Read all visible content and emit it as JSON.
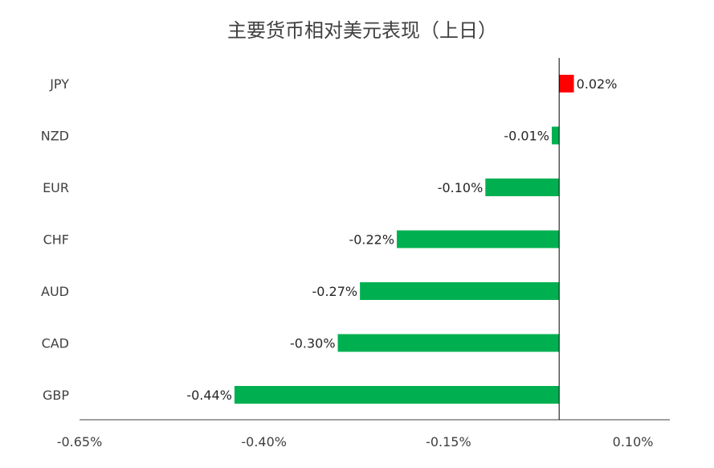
{
  "chart_data": {
    "type": "bar",
    "orientation": "horizontal",
    "title": "主要货币相对美元表现（上日）",
    "categories": [
      "JPY",
      "NZD",
      "EUR",
      "CHF",
      "AUD",
      "CAD",
      "GBP"
    ],
    "values": [
      0.02,
      -0.01,
      -0.1,
      -0.22,
      -0.27,
      -0.3,
      -0.44
    ],
    "data_labels": [
      "0.02%",
      "-0.01%",
      "-0.10%",
      "-0.22%",
      "-0.27%",
      "-0.30%",
      "-0.44%"
    ],
    "xlim": [
      -0.65,
      0.15
    ],
    "x_ticks": [
      -0.65,
      -0.4,
      -0.15,
      0.1
    ],
    "x_tick_labels": [
      "-0.65%",
      "-0.40%",
      "-0.15%",
      "0.10%"
    ],
    "positive_color": "#ff0000",
    "negative_color": "#00b050",
    "grid": false,
    "legend": "none"
  }
}
